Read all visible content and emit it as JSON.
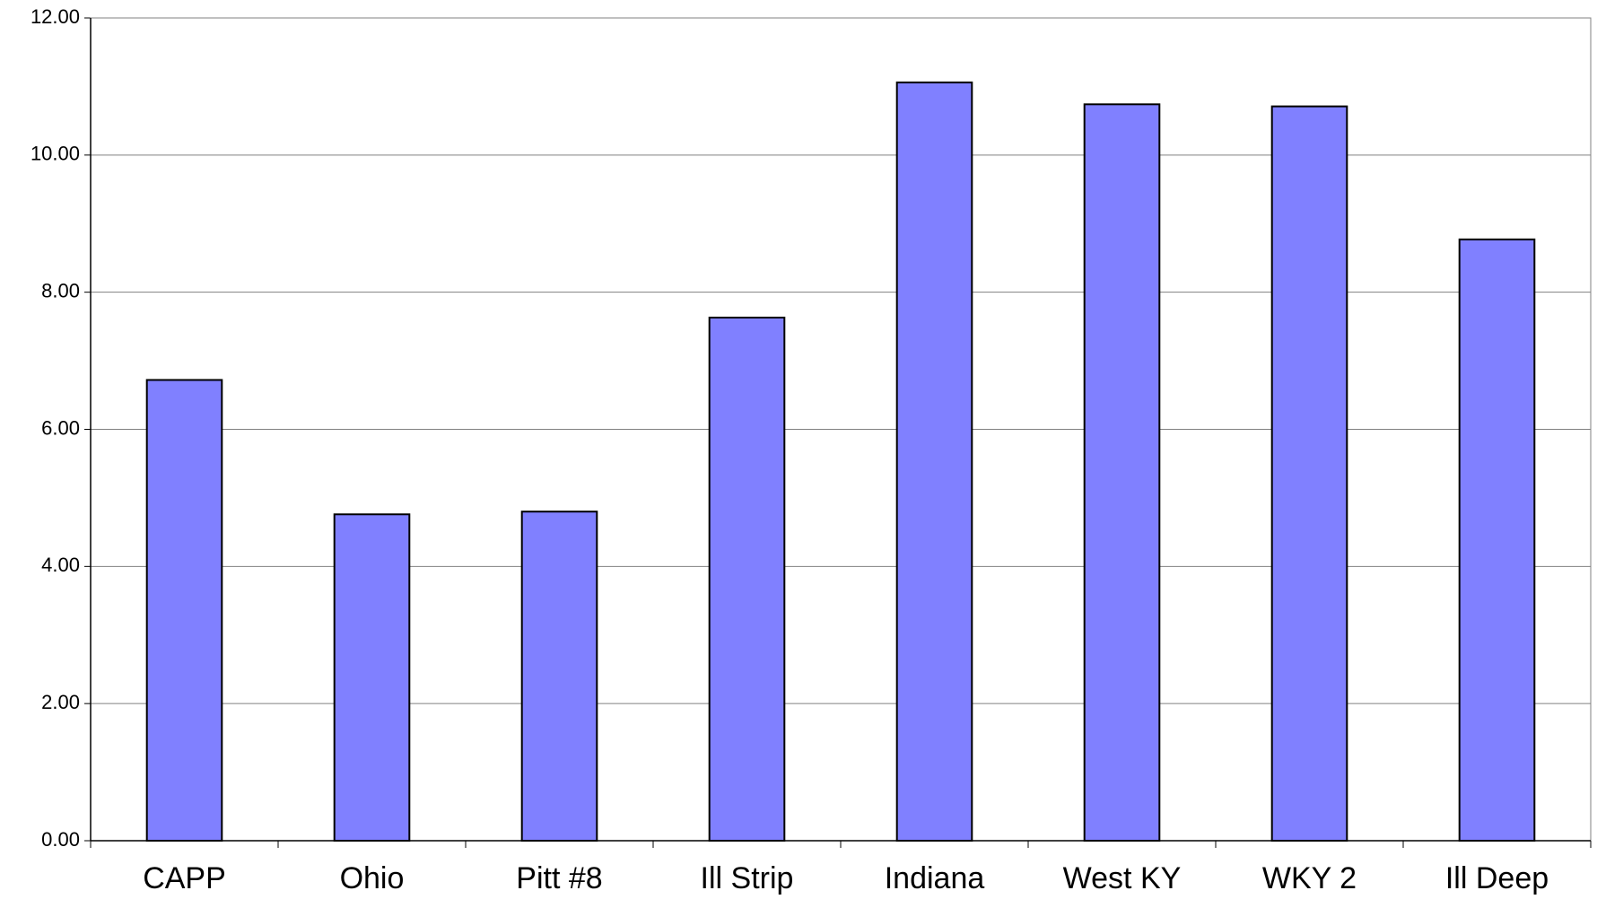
{
  "chart_data": {
    "type": "bar",
    "categories": [
      "CAPP",
      "Ohio",
      "Pitt #8",
      "Ill Strip",
      "Indiana",
      "West KY",
      "WKY 2",
      "Ill Deep"
    ],
    "values": [
      6.72,
      4.76,
      4.8,
      7.63,
      11.06,
      10.74,
      10.71,
      8.77
    ],
    "color": "#8080ff",
    "ylim": [
      0,
      12
    ],
    "yticks": [
      {
        "value": 0,
        "label": "0.00"
      },
      {
        "value": 2,
        "label": "2.00"
      },
      {
        "value": 4,
        "label": "4.00"
      },
      {
        "value": 6,
        "label": "6.00"
      },
      {
        "value": 8,
        "label": "8.00"
      },
      {
        "value": 10,
        "label": "10.00"
      },
      {
        "value": 12,
        "label": "12.00"
      }
    ],
    "grid": true
  }
}
